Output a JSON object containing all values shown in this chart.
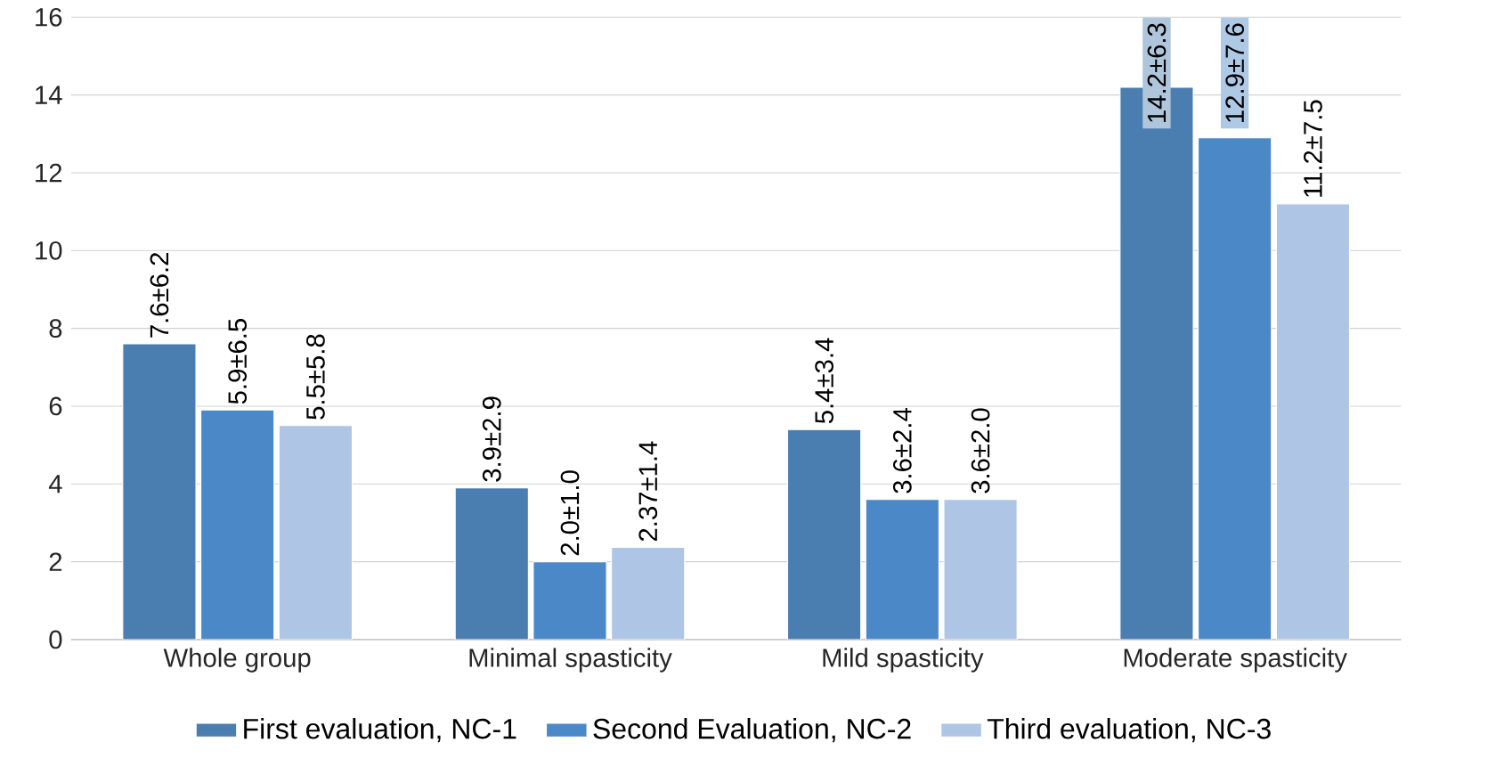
{
  "chart_data": {
    "type": "bar",
    "categories": [
      "Whole group",
      "Minimal spasticity",
      "Mild spasticity",
      "Moderate spasticity"
    ],
    "series": [
      {
        "name": "First evaluation, NC-1",
        "color": "#4a7db0",
        "values": [
          7.6,
          3.9,
          5.4,
          14.2
        ],
        "value_labels": [
          "7.6±6.2",
          "3.9±2.9",
          "5.4±3.4",
          "14.2±6.3"
        ]
      },
      {
        "name": "Second Evaluation, NC-2",
        "color": "#4a88c8",
        "values": [
          5.9,
          2.0,
          3.6,
          12.9
        ],
        "value_labels": [
          "5.9±6.5",
          "2.0±1.0",
          "3.6±2.4",
          "12.9±7.6"
        ]
      },
      {
        "name": "Third evaluation, NC-3",
        "color": "#aec5e6",
        "values": [
          5.5,
          2.37,
          3.6,
          11.2
        ],
        "value_labels": [
          "5.5±5.8",
          "2.37±1.4",
          "3.6±2.0",
          "11.2±7.5"
        ]
      }
    ],
    "ylim": [
      0,
      16
    ],
    "yticks": [
      0,
      2,
      4,
      6,
      8,
      10,
      12,
      14,
      16
    ],
    "grid": "y",
    "legend": "bottom"
  }
}
